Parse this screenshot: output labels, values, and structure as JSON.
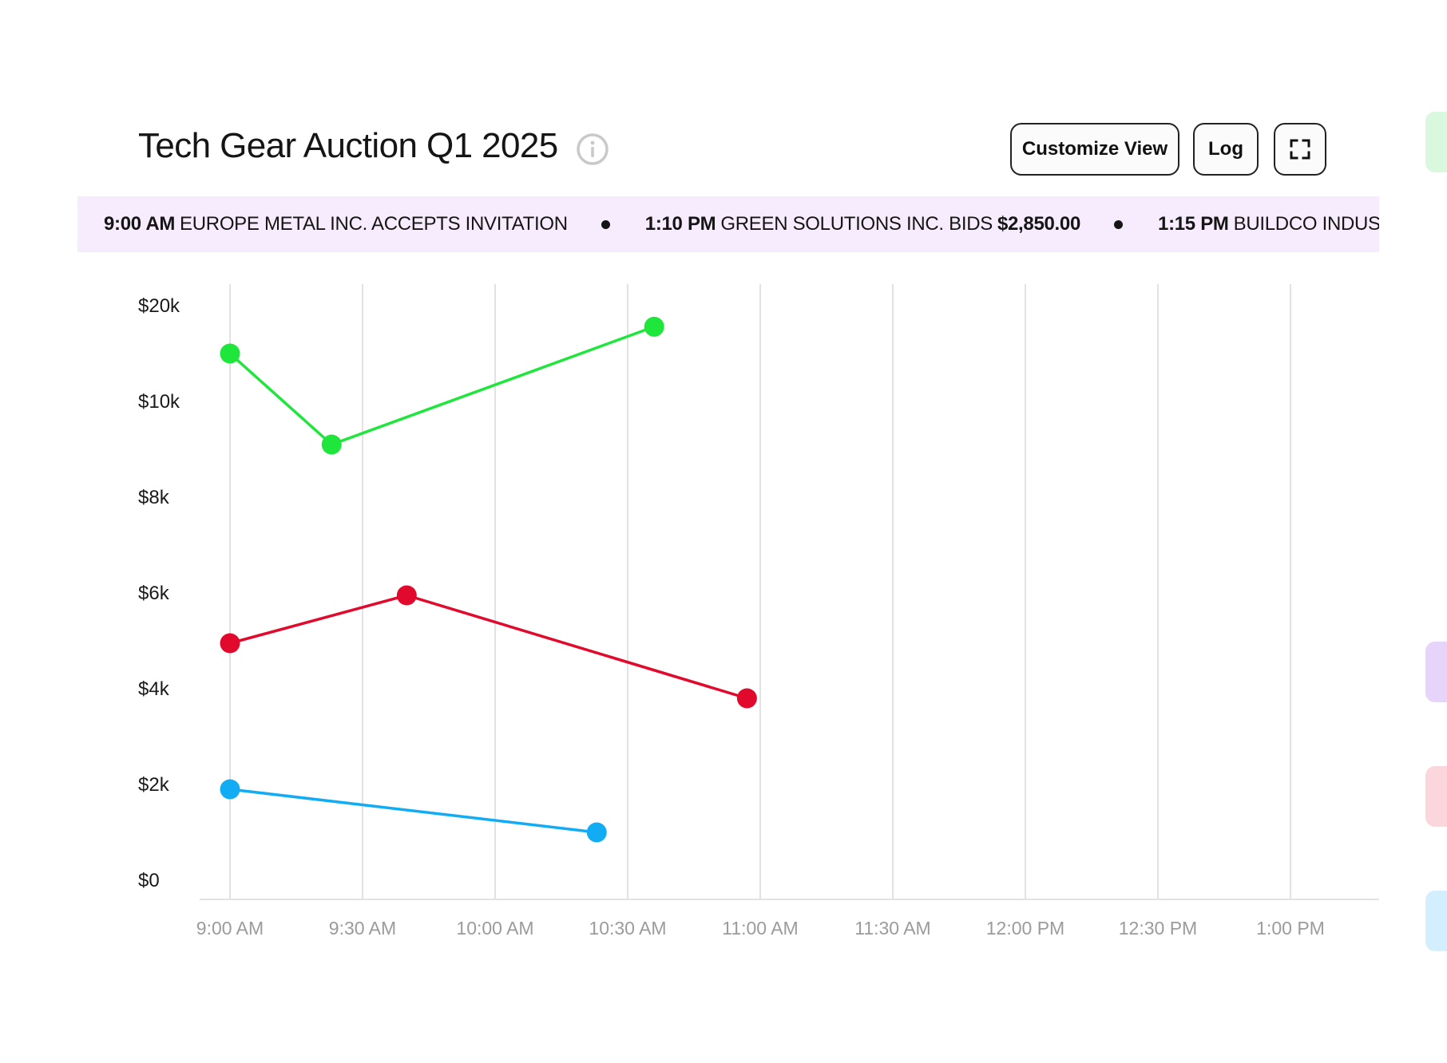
{
  "header": {
    "title": "Tech Gear Auction Q1 2025",
    "info_icon": "info-circle-icon",
    "buttons": {
      "customize": "Customize View",
      "log": "Log",
      "expand_icon": "fullscreen-expand-icon"
    }
  },
  "ticker": [
    {
      "time": "9:00 AM",
      "text": "EUROPE METAL INC. ACCEPTS INVITATION",
      "amount": ""
    },
    {
      "time": "1:10 PM",
      "text": "GREEN SOLUTIONS INC. BIDS",
      "amount": "$2,850.00"
    },
    {
      "time": "1:15 PM",
      "text": "BUILDCO INDUSTRI",
      "amount": ""
    }
  ],
  "colors": {
    "green": "#1ee63b",
    "red": "#e20a2c",
    "blue": "#12acf5",
    "ticker_bg": "#f7ecfd",
    "grid": "#e2e2e2",
    "side_tabs": [
      "#d9f8de",
      "#e6d4fb",
      "#fbd6dc",
      "#d3effe"
    ]
  },
  "chart_data": {
    "type": "line",
    "title": "Tech Gear Auction Q1 2025",
    "xlabel": "",
    "ylabel": "",
    "x_ticks": [
      "9:00 AM",
      "9:30 AM",
      "10:00 AM",
      "10:30 AM",
      "11:00 AM",
      "11:30 AM",
      "12:00 PM",
      "12:30 PM",
      "1:00 PM"
    ],
    "y_ticks": [
      "$0",
      "$2k",
      "$4k",
      "$6k",
      "$8k",
      "$10k",
      "$20k"
    ],
    "y_tick_values": [
      0,
      2000,
      4000,
      6000,
      8000,
      10000,
      20000
    ],
    "grid": "vertical",
    "series": [
      {
        "color": "#1ee63b",
        "points": [
          {
            "x": "9:00 AM",
            "y": 15000
          },
          {
            "x": "9:23 AM",
            "y": 9100
          },
          {
            "x": "10:36 AM",
            "y": 17800
          }
        ]
      },
      {
        "color": "#e20a2c",
        "points": [
          {
            "x": "9:00 AM",
            "y": 4950
          },
          {
            "x": "9:40 AM",
            "y": 5950
          },
          {
            "x": "10:57 AM",
            "y": 3800
          }
        ]
      },
      {
        "color": "#12acf5",
        "points": [
          {
            "x": "9:00 AM",
            "y": 1900
          },
          {
            "x": "10:23 AM",
            "y": 1000
          }
        ]
      }
    ]
  }
}
